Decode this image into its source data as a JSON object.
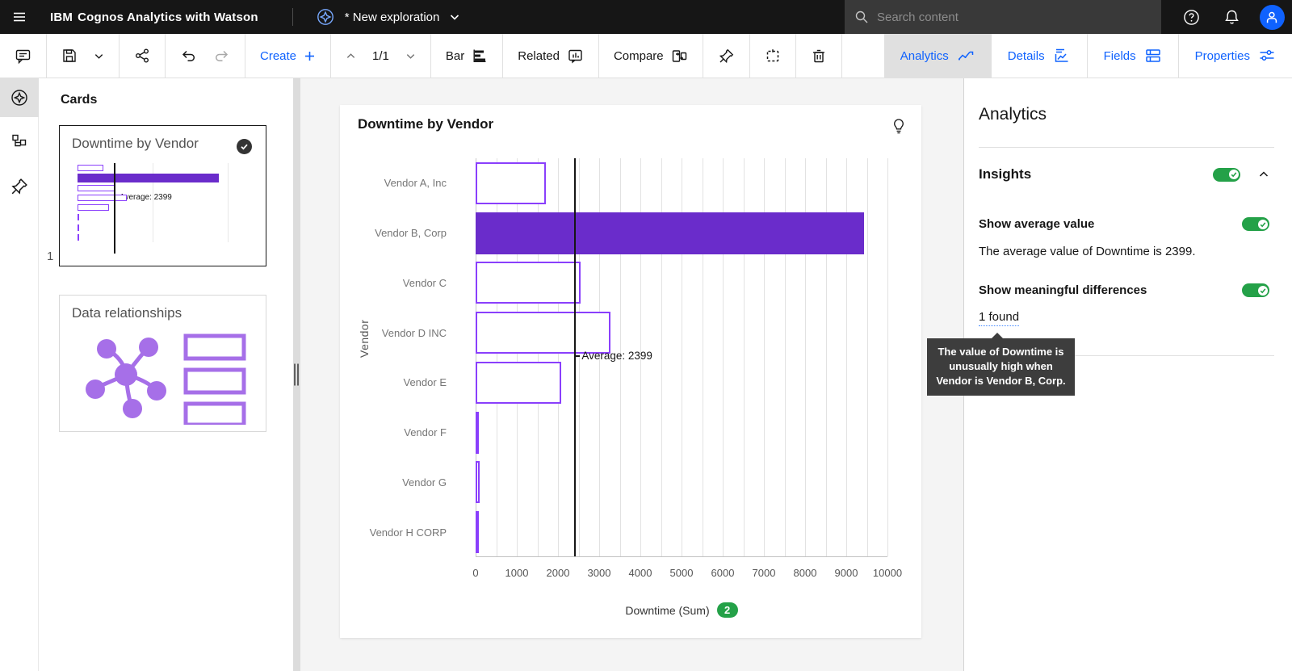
{
  "header": {
    "brand_prefix": "IBM",
    "brand_name": "Cognos Analytics with Watson",
    "doc_title": "* New exploration",
    "search_placeholder": "Search content"
  },
  "toolbar": {
    "create_label": "Create",
    "page_indicator": "1/1",
    "bar_label": "Bar",
    "related_label": "Related",
    "compare_label": "Compare",
    "tabs": [
      {
        "label": "Analytics",
        "active": true
      },
      {
        "label": "Details",
        "active": false
      },
      {
        "label": "Fields",
        "active": false
      },
      {
        "label": "Properties",
        "active": false
      }
    ]
  },
  "sidebar": {
    "panel_title": "Cards",
    "cards": [
      {
        "title": "Downtime by Vendor",
        "selected": true,
        "index_label": "1",
        "avg_label": "Average: 2399"
      },
      {
        "title": "Data relationships",
        "selected": false
      }
    ]
  },
  "chart_data": {
    "type": "bar",
    "orientation": "horizontal",
    "title": "Downtime by Vendor",
    "categories": [
      "Vendor A, Inc",
      "Vendor B, Corp",
      "Vendor C",
      "Vendor D INC",
      "Vendor E",
      "Vendor F",
      "Vendor G",
      "Vendor H CORP"
    ],
    "values": [
      1700,
      9430,
      2550,
      3270,
      2070,
      40,
      100,
      35
    ],
    "highlighted_category": "Vendor B, Corp",
    "xlabel": "Downtime (Sum)",
    "ylabel": "Vendor",
    "xlim": [
      0,
      10000
    ],
    "x_ticks": [
      0,
      1000,
      2000,
      3000,
      4000,
      5000,
      6000,
      7000,
      8000,
      9000,
      10000
    ],
    "gridline_step": 500,
    "grid": true,
    "legend": "none",
    "average": 2399,
    "average_label": "Average: 2399",
    "measure_badge": "2",
    "bar_fill_color": "#6a2ccb",
    "bar_outline_color": "#8a3ffc",
    "average_line_color": "#161616"
  },
  "right_panel": {
    "title": "Analytics",
    "insights_label": "Insights",
    "insights_enabled": true,
    "show_average_label": "Show average value",
    "show_average_enabled": true,
    "show_average_description": "The average value of Downtime is 2399.",
    "meaningful_label": "Show meaningful differences",
    "meaningful_enabled": true,
    "found_label": "1 found",
    "tooltip_text": "The value of Downtime is unusually high when Vendor is Vendor B, Corp."
  },
  "colors": {
    "header_bg": "#161616",
    "accent_blue": "#0f62fe",
    "toggle_green": "#24a148",
    "badge_green": "#24a148",
    "bar_purple": "#6a2ccb",
    "bar_outline_purple": "#8a3ffc",
    "thumbnail_purple": "#a66fe8",
    "canvas_bg": "#f4f4f4",
    "tooltip_bg": "#3d3d3d"
  }
}
